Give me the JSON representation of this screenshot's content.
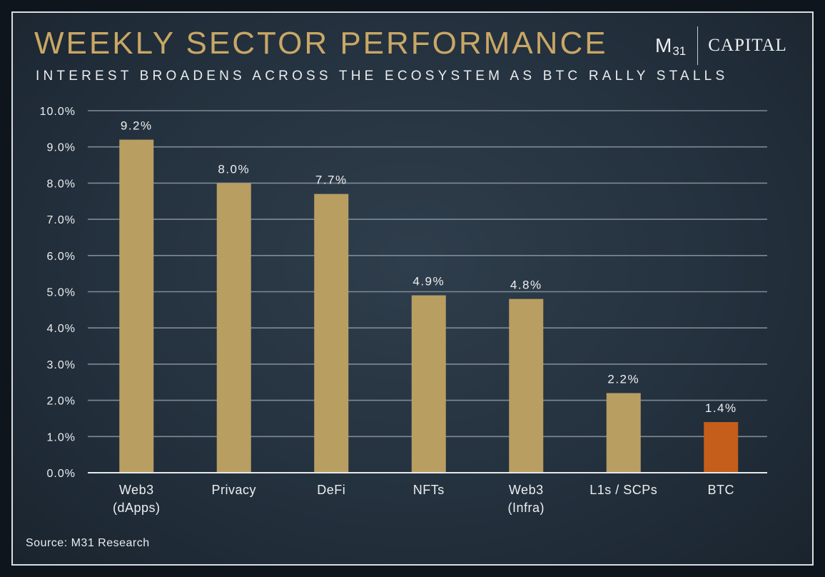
{
  "header": {
    "title": "WEEKLY SECTOR PERFORMANCE",
    "subtitle": "INTEREST BROADENS ACROSS THE ECOSYSTEM AS BTC RALLY STALLS"
  },
  "logo": {
    "mark": "M",
    "mark_sub": "31",
    "word": "CAPITAL"
  },
  "footer": {
    "source": "Source: M31 Research"
  },
  "colors": {
    "bar": "#b99e62",
    "highlight_bar": "#c45e1a",
    "title": "#c9a765",
    "grid": "#7f8a95",
    "axis": "#e6e9ec"
  },
  "chart_data": {
    "type": "bar",
    "categories": [
      [
        "Web3",
        "(dApps)"
      ],
      [
        "Privacy"
      ],
      [
        "DeFi"
      ],
      [
        "NFTs"
      ],
      [
        "Web3",
        "(Infra)"
      ],
      [
        "L1s / SCPs"
      ],
      [
        "BTC"
      ]
    ],
    "values": [
      9.2,
      8.0,
      7.7,
      4.9,
      4.8,
      2.2,
      1.4
    ],
    "value_labels": [
      "9.2%",
      "8.0%",
      "7.7%",
      "4.9%",
      "4.8%",
      "2.2%",
      "1.4%"
    ],
    "highlight_index": 6,
    "ylim": [
      0,
      10
    ],
    "y_ticks": [
      0,
      1,
      2,
      3,
      4,
      5,
      6,
      7,
      8,
      9,
      10
    ],
    "y_tick_labels": [
      "0.0%",
      "1.0%",
      "2.0%",
      "3.0%",
      "4.0%",
      "5.0%",
      "6.0%",
      "7.0%",
      "8.0%",
      "9.0%",
      "10.0%"
    ],
    "grid": true,
    "legend": "none"
  }
}
